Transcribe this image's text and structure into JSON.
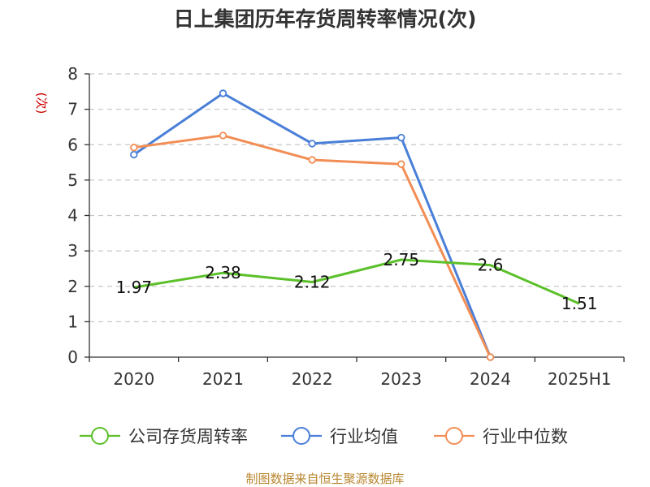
{
  "chart_data": {
    "type": "line",
    "title": "日上集团历年存货周转率情况(次)",
    "ylabel": "(次)",
    "xlabel": "",
    "categories": [
      "2020",
      "2021",
      "2022",
      "2023",
      "2024",
      "2025H1"
    ],
    "ylim": [
      0,
      8
    ],
    "yticks": [
      0,
      1,
      2,
      3,
      4,
      5,
      6,
      7,
      8
    ],
    "grid": "horizontal-dashed",
    "legend_position": "bottom",
    "series": [
      {
        "name": "公司存货周转率",
        "color": "#5cc02a",
        "values": [
          1.97,
          2.38,
          2.12,
          2.75,
          2.6,
          1.51
        ],
        "labels": [
          "1.97",
          "2.38",
          "2.12",
          "2.75",
          "2.6",
          "1.51"
        ]
      },
      {
        "name": "行业均值",
        "color": "#4a7fd8",
        "values": [
          5.72,
          7.45,
          6.03,
          6.2,
          0,
          null
        ]
      },
      {
        "name": "行业中位数",
        "color": "#f28e55",
        "values": [
          5.92,
          6.26,
          5.57,
          5.45,
          0,
          null
        ]
      }
    ]
  },
  "source": "制图数据来自恒生聚源数据库"
}
